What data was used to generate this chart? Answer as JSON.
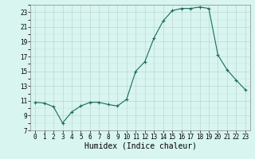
{
  "x": [
    0,
    1,
    2,
    3,
    4,
    5,
    6,
    7,
    8,
    9,
    10,
    11,
    12,
    13,
    14,
    15,
    16,
    17,
    18,
    19,
    20,
    21,
    22,
    23
  ],
  "y": [
    10.8,
    10.7,
    10.2,
    8.0,
    9.5,
    10.3,
    10.8,
    10.8,
    10.5,
    10.3,
    11.2,
    15.0,
    16.3,
    19.5,
    21.8,
    23.2,
    23.5,
    23.5,
    23.7,
    23.5,
    17.2,
    15.2,
    13.8,
    12.5
  ],
  "line_color": "#1a6b5a",
  "marker": "+",
  "markersize": 3,
  "markeredgewidth": 0.8,
  "linewidth": 0.8,
  "bg_color": "#d8f5f0",
  "grid_color": "#b8cece",
  "grid_color2": "#c8dede",
  "xlabel": "Humidex (Indice chaleur)",
  "xlim": [
    -0.5,
    23.5
  ],
  "ylim": [
    7,
    24
  ],
  "yticks": [
    7,
    9,
    11,
    13,
    15,
    17,
    19,
    21,
    23
  ],
  "xticks": [
    0,
    1,
    2,
    3,
    4,
    5,
    6,
    7,
    8,
    9,
    10,
    11,
    12,
    13,
    14,
    15,
    16,
    17,
    18,
    19,
    20,
    21,
    22,
    23
  ],
  "tick_fontsize": 5.5,
  "xlabel_fontsize": 7.0
}
